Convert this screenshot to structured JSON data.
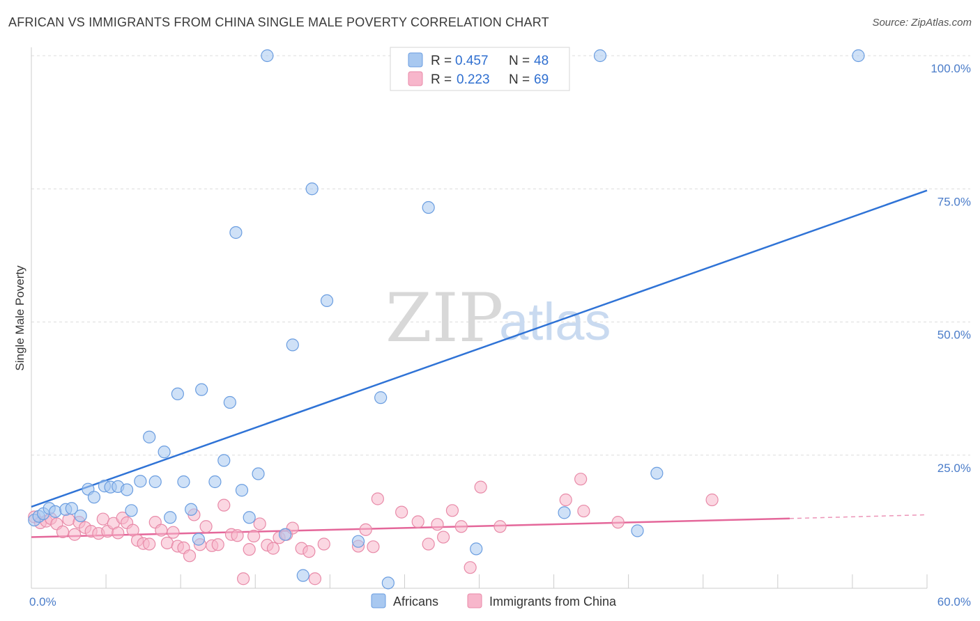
{
  "header": {
    "title": "AFRICAN VS IMMIGRANTS FROM CHINA SINGLE MALE POVERTY CORRELATION CHART",
    "source": "Source: ZipAtlas.com"
  },
  "watermark": {
    "zip": "ZIP",
    "atlas": "atlas"
  },
  "legend": {
    "r_label": "R =",
    "n_label": "N =",
    "items": [
      {
        "r": "0.457",
        "n": "48",
        "color": "#a8c8f0"
      },
      {
        "r": "0.223",
        "n": "69",
        "color": "#f7b6cb"
      }
    ]
  },
  "bottom_legend": [
    {
      "label": "Africans",
      "color": "#a8c8f0"
    },
    {
      "label": "Immigrants from China",
      "color": "#f7b6cb"
    }
  ],
  "chart_data": {
    "type": "scatter",
    "title": "AFRICAN VS IMMIGRANTS FROM CHINA SINGLE MALE POVERTY CORRELATION CHART",
    "xlabel": "",
    "ylabel": "Single Male Poverty",
    "xlim": [
      0,
      60
    ],
    "ylim": [
      0,
      100
    ],
    "x_tick_labels": [
      "0.0%",
      "60.0%"
    ],
    "y_tick_labels": [
      {
        "value": 25,
        "label": "25.0%"
      },
      {
        "value": 50,
        "label": "50.0%"
      },
      {
        "value": 75,
        "label": "75.0%"
      },
      {
        "value": 100,
        "label": "100.0%"
      }
    ],
    "grid": "horizontal dashed",
    "legend_position": "top-center",
    "series": [
      {
        "name": "Africans",
        "color": "#a8c8f0",
        "stroke": "#6a9de0",
        "trend": {
          "x0": 0,
          "y0": 15.3,
          "x1": 60,
          "y1": 74.7,
          "color": "#2f73d6"
        },
        "points": [
          [
            0.2,
            12.8
          ],
          [
            0.5,
            13.5
          ],
          [
            0.8,
            14.0
          ],
          [
            1.2,
            15.0
          ],
          [
            1.6,
            14.4
          ],
          [
            2.3,
            14.8
          ],
          [
            2.7,
            15.0
          ],
          [
            3.3,
            13.6
          ],
          [
            3.8,
            18.6
          ],
          [
            4.2,
            17.1
          ],
          [
            4.9,
            19.2
          ],
          [
            5.3,
            19.0
          ],
          [
            5.8,
            19.1
          ],
          [
            6.4,
            18.5
          ],
          [
            6.7,
            14.6
          ],
          [
            7.3,
            20.1
          ],
          [
            7.9,
            28.4
          ],
          [
            8.3,
            20.0
          ],
          [
            8.9,
            25.6
          ],
          [
            9.3,
            13.3
          ],
          [
            9.8,
            36.5
          ],
          [
            10.2,
            20.0
          ],
          [
            10.7,
            14.8
          ],
          [
            11.2,
            9.2
          ],
          [
            11.4,
            37.3
          ],
          [
            12.3,
            20.0
          ],
          [
            12.9,
            24.0
          ],
          [
            13.3,
            34.9
          ],
          [
            13.7,
            66.8
          ],
          [
            14.1,
            18.4
          ],
          [
            14.6,
            13.3
          ],
          [
            15.2,
            21.5
          ],
          [
            15.8,
            100.0
          ],
          [
            17.0,
            10.1
          ],
          [
            17.5,
            45.7
          ],
          [
            18.2,
            2.4
          ],
          [
            18.8,
            75.0
          ],
          [
            19.8,
            54.0
          ],
          [
            21.9,
            8.8
          ],
          [
            23.4,
            35.8
          ],
          [
            23.9,
            1.0
          ],
          [
            26.6,
            71.5
          ],
          [
            29.8,
            7.4
          ],
          [
            35.7,
            14.2
          ],
          [
            38.1,
            100.0
          ],
          [
            40.6,
            10.8
          ],
          [
            41.9,
            21.6
          ],
          [
            55.4,
            100.0
          ]
        ]
      },
      {
        "name": "Immigrants from China",
        "color": "#f7b6cb",
        "stroke": "#e88aa8",
        "trend": {
          "x0": 0,
          "y0": 9.6,
          "x1": 50.8,
          "y1": 13.1,
          "dashed_to": {
            "x": 60,
            "y": 13.8
          },
          "color": "#e4679a"
        },
        "points": [
          [
            0.2,
            13.4
          ],
          [
            0.6,
            12.3
          ],
          [
            1.0,
            12.6
          ],
          [
            1.3,
            13.1
          ],
          [
            1.7,
            12.1
          ],
          [
            2.1,
            10.6
          ],
          [
            2.5,
            12.9
          ],
          [
            2.9,
            10.1
          ],
          [
            3.2,
            12.4
          ],
          [
            3.6,
            11.4
          ],
          [
            4.0,
            10.7
          ],
          [
            4.5,
            10.3
          ],
          [
            4.8,
            13.0
          ],
          [
            5.1,
            10.7
          ],
          [
            5.5,
            12.2
          ],
          [
            5.8,
            10.4
          ],
          [
            6.1,
            13.2
          ],
          [
            6.4,
            12.3
          ],
          [
            6.8,
            10.9
          ],
          [
            7.1,
            9.0
          ],
          [
            7.5,
            8.4
          ],
          [
            7.9,
            8.3
          ],
          [
            8.3,
            12.4
          ],
          [
            8.7,
            10.9
          ],
          [
            9.1,
            8.5
          ],
          [
            9.5,
            10.5
          ],
          [
            9.8,
            7.9
          ],
          [
            10.2,
            7.6
          ],
          [
            10.6,
            6.1
          ],
          [
            10.9,
            13.8
          ],
          [
            11.3,
            8.2
          ],
          [
            11.7,
            11.6
          ],
          [
            12.1,
            8.0
          ],
          [
            12.5,
            8.2
          ],
          [
            12.9,
            15.6
          ],
          [
            13.4,
            10.1
          ],
          [
            13.8,
            9.9
          ],
          [
            14.2,
            1.8
          ],
          [
            14.6,
            7.3
          ],
          [
            14.9,
            9.8
          ],
          [
            15.3,
            12.1
          ],
          [
            15.8,
            8.1
          ],
          [
            16.2,
            7.5
          ],
          [
            16.6,
            9.5
          ],
          [
            17.1,
            10.1
          ],
          [
            17.5,
            11.3
          ],
          [
            18.1,
            7.5
          ],
          [
            18.6,
            6.9
          ],
          [
            19.0,
            1.8
          ],
          [
            19.6,
            8.3
          ],
          [
            21.9,
            7.9
          ],
          [
            22.4,
            11.0
          ],
          [
            22.9,
            7.8
          ],
          [
            23.2,
            16.8
          ],
          [
            24.8,
            14.3
          ],
          [
            25.9,
            12.5
          ],
          [
            26.6,
            8.3
          ],
          [
            27.2,
            12.0
          ],
          [
            27.6,
            9.6
          ],
          [
            28.2,
            14.6
          ],
          [
            28.8,
            11.6
          ],
          [
            29.4,
            3.9
          ],
          [
            30.1,
            19.0
          ],
          [
            31.4,
            11.6
          ],
          [
            35.8,
            16.6
          ],
          [
            36.8,
            20.5
          ],
          [
            37.0,
            14.5
          ],
          [
            39.3,
            12.4
          ],
          [
            45.6,
            16.6
          ]
        ]
      }
    ]
  }
}
